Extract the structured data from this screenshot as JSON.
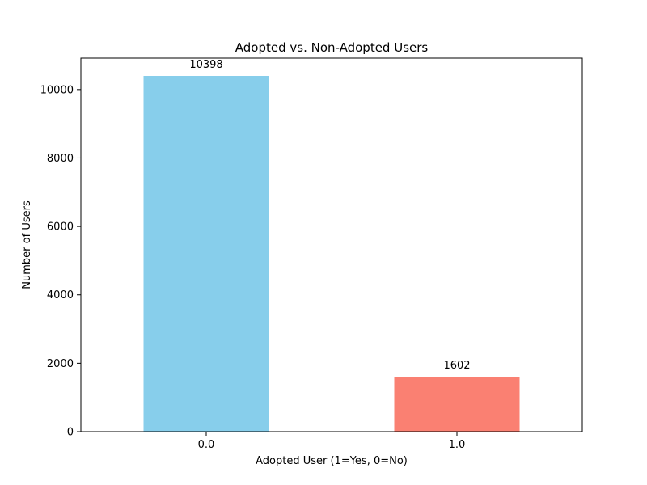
{
  "chart_data": {
    "type": "bar",
    "title": "Adopted vs. Non-Adopted Users",
    "xlabel": "Adopted User (1=Yes, 0=No)",
    "ylabel": "Number of Users",
    "categories": [
      "0.0",
      "1.0"
    ],
    "values": [
      10398,
      1602
    ],
    "data_labels": [
      "10398",
      "1602"
    ],
    "bar_colors": [
      "#87ceeb",
      "#fa8072"
    ],
    "ylim": [
      0,
      10918
    ],
    "yticks": [
      0,
      2000,
      4000,
      6000,
      8000,
      10000
    ],
    "ytick_labels": [
      "0",
      "2000",
      "4000",
      "6000",
      "8000",
      "10000"
    ],
    "grid": false,
    "legend": "none"
  }
}
